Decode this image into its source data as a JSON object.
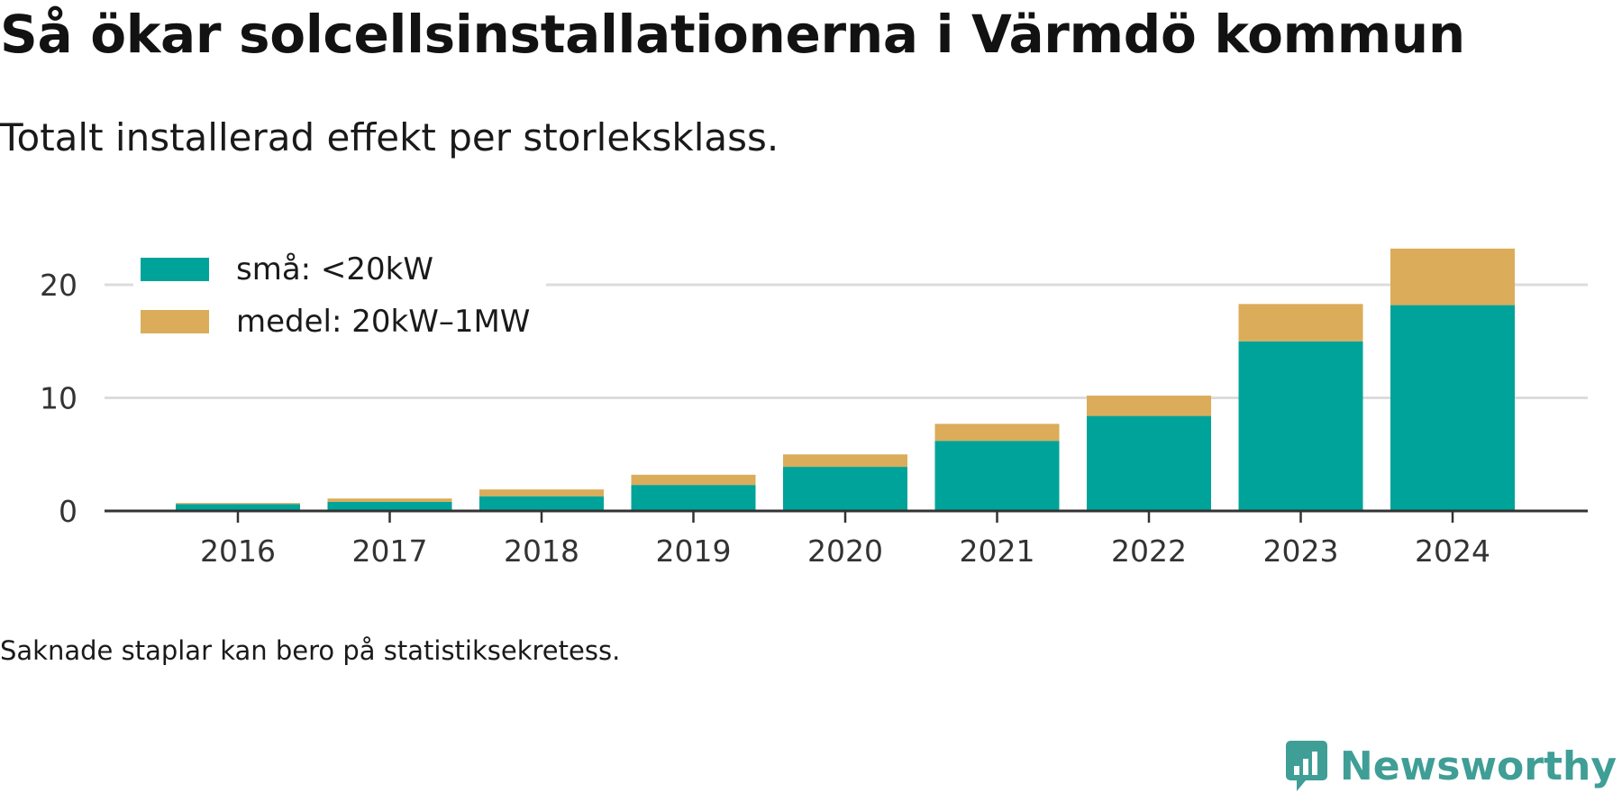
{
  "title": "Så ökar solcellsinstallationerna i Värmdö kommun",
  "subtitle": "Totalt installerad effekt per storleksklass.",
  "note": "Saknade staplar kan bero på statistiksekretess.",
  "brand": {
    "name": "Newsworthy",
    "icon": "newsworthy-logo-icon",
    "color": "#3f9e96"
  },
  "legend": [
    {
      "label": "små: <20kW",
      "color": "#00a39a"
    },
    {
      "label": "medel: 20kW–1MW",
      "color": "#dbac5a"
    }
  ],
  "chart_data": {
    "type": "bar",
    "stacked": true,
    "title": "Så ökar solcellsinstallationerna i Värmdö kommun",
    "subtitle": "Totalt installerad effekt per storleksklass.",
    "xlabel": "",
    "ylabel": "",
    "categories": [
      "2016",
      "2017",
      "2018",
      "2019",
      "2020",
      "2021",
      "2022",
      "2023",
      "2024"
    ],
    "series": [
      {
        "name": "små: <20kW",
        "color": "#00a39a",
        "values": [
          0.6,
          0.8,
          1.3,
          2.3,
          3.9,
          6.2,
          8.4,
          15.0,
          18.2
        ]
      },
      {
        "name": "medel: 20kW–1MW",
        "color": "#dbac5a",
        "values": [
          0.1,
          0.3,
          0.6,
          0.9,
          1.1,
          1.5,
          1.8,
          3.3,
          5.0
        ]
      }
    ],
    "ylim": [
      0,
      23.2
    ],
    "yticks": [
      0,
      10,
      20
    ],
    "grid": true,
    "legend_position": "top-left"
  }
}
